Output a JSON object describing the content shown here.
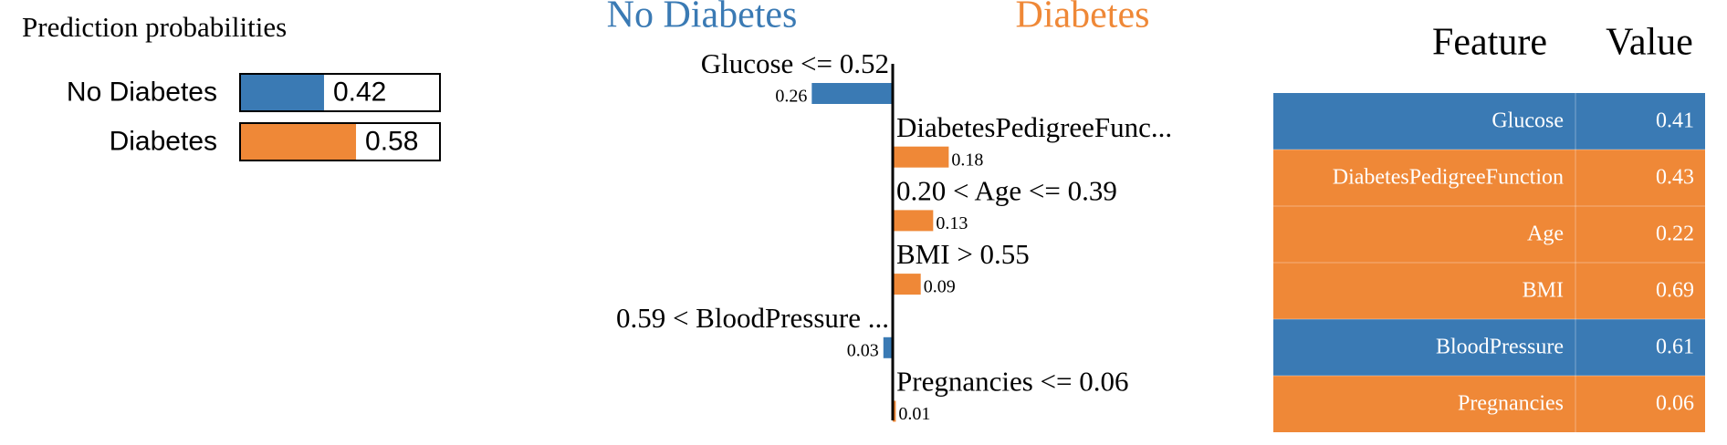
{
  "chart_data": [
    {
      "type": "hbar",
      "title": "Prediction probabilities",
      "categories": [
        "No Diabetes",
        "Diabetes"
      ],
      "values": [
        0.42,
        0.58
      ],
      "colors": [
        "#3a7ab4",
        "#ef8837"
      ],
      "xlim": [
        0,
        1
      ]
    },
    {
      "type": "diverging",
      "categories": [
        "Glucose <= 0.52",
        "DiabetesPedigreeFunc...",
        "0.20 < Age <= 0.39",
        "BMI > 0.55",
        "0.59 < BloodPressure ...",
        "Pregnancies <= 0.06"
      ],
      "series": [
        {
          "name": "No Diabetes",
          "color": "#3a7ab4",
          "values": [
            0.26,
            null,
            null,
            null,
            0.03,
            null
          ]
        },
        {
          "name": "Diabetes",
          "color": "#ef8837",
          "values": [
            null,
            0.18,
            0.13,
            0.09,
            null,
            0.01
          ]
        }
      ]
    }
  ],
  "table": {
    "header": [
      "Feature",
      "Value"
    ],
    "rows": [
      [
        "Glucose",
        0.41
      ],
      [
        "DiabetesPedigreeFunction",
        0.43
      ],
      [
        "Age",
        0.22
      ],
      [
        "BMI",
        0.69
      ],
      [
        "BloodPressure",
        0.61
      ],
      [
        "Pregnancies",
        0.06
      ]
    ],
    "row_colors": [
      "#3a7ab4",
      "#ef8837",
      "#ef8837",
      "#ef8837",
      "#3a7ab4",
      "#ef8837"
    ]
  }
}
